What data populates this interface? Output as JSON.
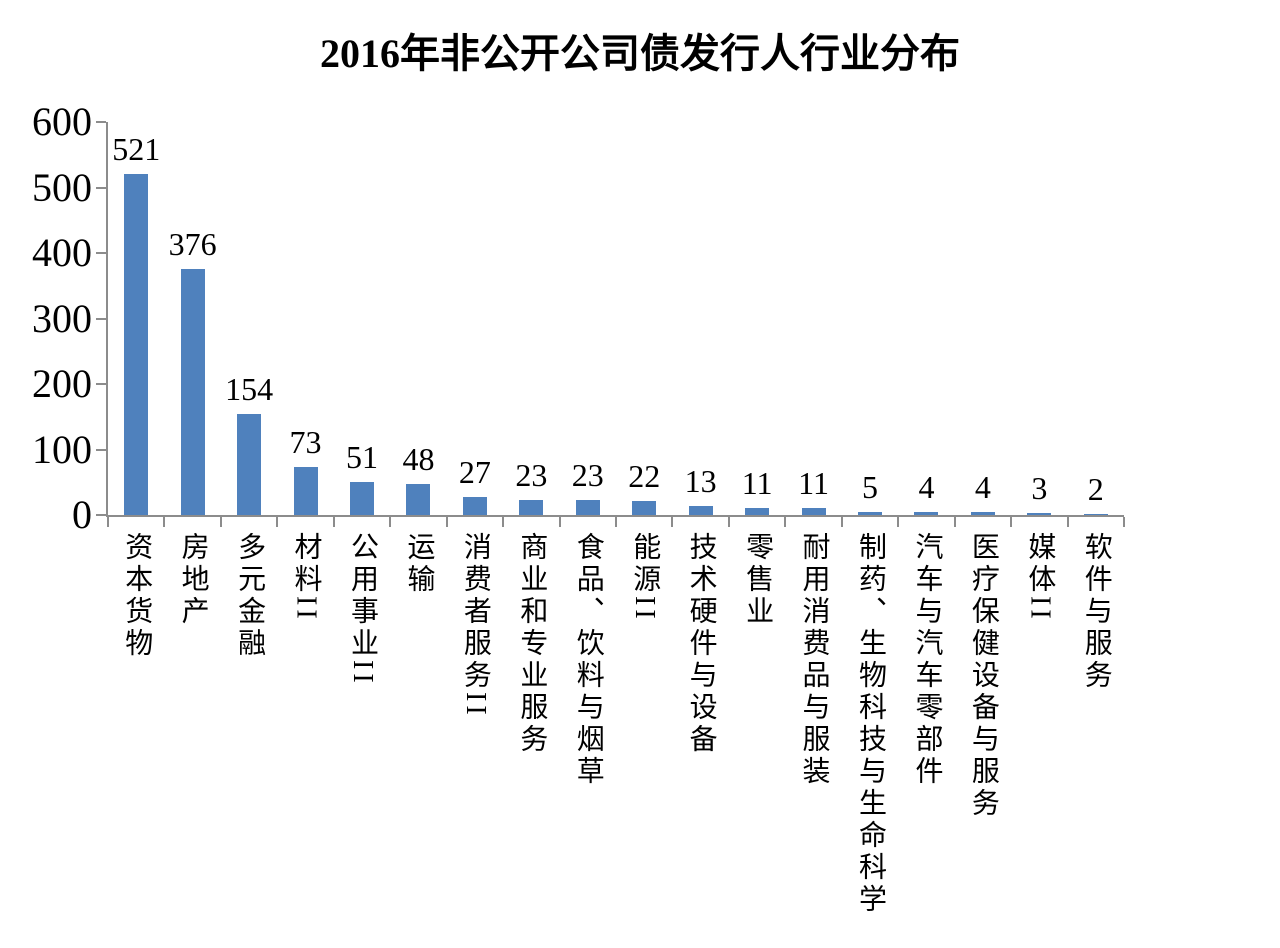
{
  "chart_data": {
    "type": "bar",
    "title": "2016年非公开公司债发行人行业分布",
    "categories": [
      "资本货物",
      "房地产",
      "多元金融",
      "材料II",
      "公用事业II",
      "运输",
      "消费者服务II",
      "商业和专业服务",
      "食品、饮料与烟草",
      "能源II",
      "技术硬件与设备",
      "零售业",
      "耐用消费品与服装",
      "制药、生物科技与生命科学",
      "汽车与汽车零部件",
      "医疗保健设备与服务",
      "媒体II",
      "软件与服务"
    ],
    "values": [
      521,
      376,
      154,
      73,
      51,
      48,
      27,
      23,
      23,
      22,
      13,
      11,
      11,
      5,
      4,
      4,
      3,
      2
    ],
    "xlabel": "",
    "ylabel": "",
    "y_ticks": [
      0,
      100,
      200,
      300,
      400,
      500,
      600
    ],
    "ylim": [
      0,
      600
    ],
    "grid": false,
    "legend": "none",
    "data_labels": true,
    "category_label_orientation": "vertical",
    "bar_color": "#4F81BD",
    "axis_color": "#8C8C8C",
    "text_color": "#000000",
    "background_color": "#FFFFFF"
  }
}
